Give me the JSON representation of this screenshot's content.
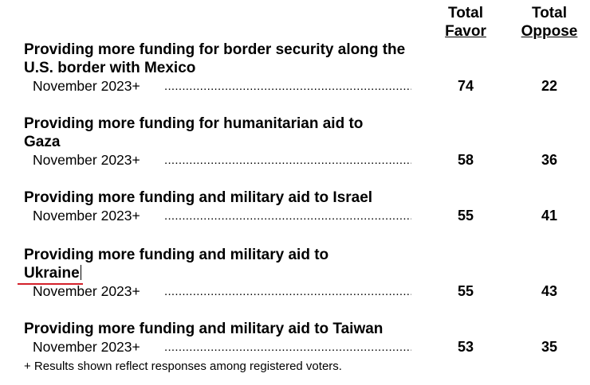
{
  "headers": {
    "favor_line1": "Total",
    "favor_line2": "Favor",
    "oppose_line1": "Total",
    "oppose_line2": "Oppose"
  },
  "items": [
    {
      "title": "Providing more funding for border security along the U.S. border with Mexico",
      "date": "November 2023+",
      "favor": "74",
      "oppose": "22"
    },
    {
      "title": "Providing more funding for humanitarian aid to Gaza",
      "date": "November 2023+",
      "favor": "58",
      "oppose": "36"
    },
    {
      "title": "Providing more funding and military aid to Israel",
      "date": "November 2023+",
      "favor": "55",
      "oppose": "41"
    },
    {
      "title_line1": "Providing more funding and military aid to",
      "title_line2": "Ukraine",
      "date": "November 2023+",
      "favor": "55",
      "oppose": "43"
    },
    {
      "title": "Providing more funding and military aid to Taiwan",
      "date": "November 2023+",
      "favor": "53",
      "oppose": "35"
    }
  ],
  "dot_leader": "........................................................................",
  "footnote": "+ Results shown reflect responses among registered voters."
}
